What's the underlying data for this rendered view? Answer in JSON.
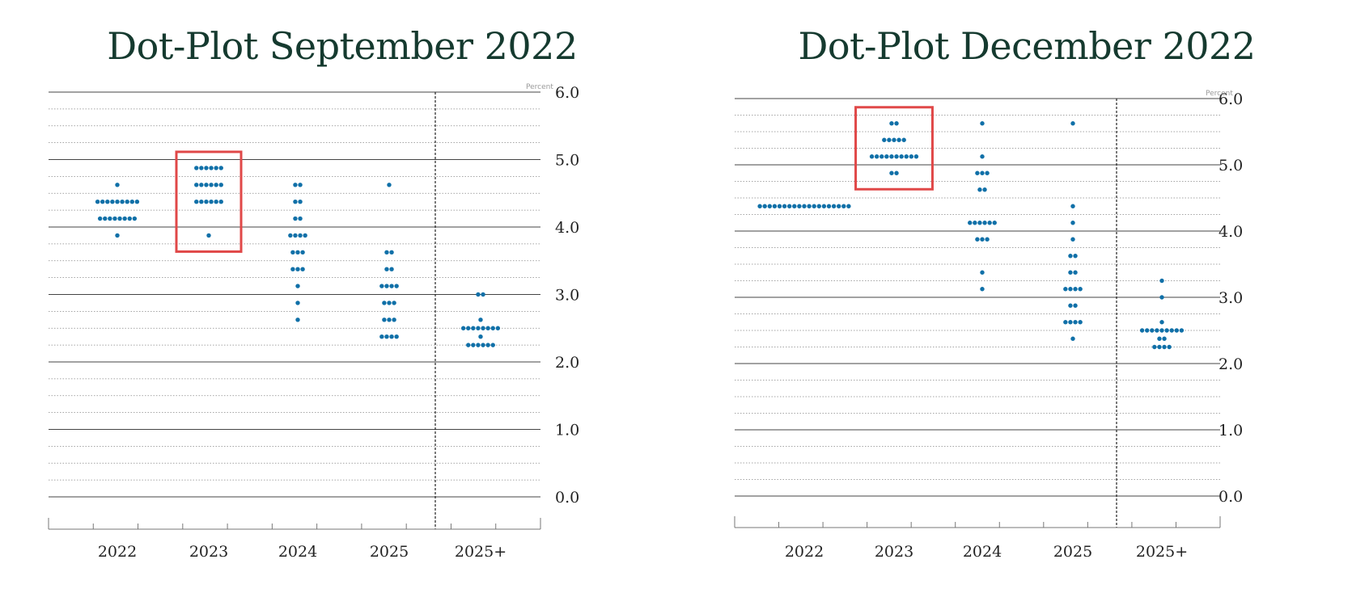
{
  "chart_data": [
    {
      "type": "scatter",
      "title": "Dot-Plot September 2022",
      "unit_label": "Percent",
      "categories": [
        "2022",
        "2023",
        "2024",
        "2025",
        "2025+"
      ],
      "yticks": [
        "0.0",
        "1.0",
        "2.0",
        "3.0",
        "4.0",
        "5.0",
        "6.0"
      ],
      "ylim": [
        0,
        6
      ],
      "grid": true,
      "highlight_category": "2023",
      "highlight_color": "#e04848",
      "dot_color": "#1070a8",
      "dots": [
        {
          "category": "2022",
          "levels": [
            {
              "y": 4.625,
              "count": 1
            },
            {
              "y": 4.375,
              "count": 9
            },
            {
              "y": 4.125,
              "count": 8
            },
            {
              "y": 3.875,
              "count": 1
            }
          ]
        },
        {
          "category": "2023",
          "levels": [
            {
              "y": 4.875,
              "count": 6
            },
            {
              "y": 4.625,
              "count": 6
            },
            {
              "y": 4.375,
              "count": 6
            },
            {
              "y": 3.875,
              "count": 1
            }
          ]
        },
        {
          "category": "2024",
          "levels": [
            {
              "y": 4.625,
              "count": 2
            },
            {
              "y": 4.375,
              "count": 2
            },
            {
              "y": 4.125,
              "count": 2
            },
            {
              "y": 3.875,
              "count": 4
            },
            {
              "y": 3.625,
              "count": 3
            },
            {
              "y": 3.375,
              "count": 3
            },
            {
              "y": 3.125,
              "count": 1
            },
            {
              "y": 2.875,
              "count": 1
            },
            {
              "y": 2.625,
              "count": 1
            }
          ]
        },
        {
          "category": "2025",
          "levels": [
            {
              "y": 4.625,
              "count": 1
            },
            {
              "y": 3.625,
              "count": 2
            },
            {
              "y": 3.375,
              "count": 2
            },
            {
              "y": 3.125,
              "count": 4
            },
            {
              "y": 2.875,
              "count": 3
            },
            {
              "y": 2.625,
              "count": 3
            },
            {
              "y": 2.375,
              "count": 4
            }
          ]
        },
        {
          "category": "2025+",
          "levels": [
            {
              "y": 3.0,
              "count": 2
            },
            {
              "y": 2.625,
              "count": 1
            },
            {
              "y": 2.5,
              "count": 8
            },
            {
              "y": 2.375,
              "count": 1
            },
            {
              "y": 2.25,
              "count": 6
            }
          ]
        }
      ]
    },
    {
      "type": "scatter",
      "title": "Dot-Plot December 2022",
      "unit_label": "Percent",
      "categories": [
        "2022",
        "2023",
        "2024",
        "2025",
        "2025+"
      ],
      "yticks": [
        "0.0",
        "1.0",
        "2.0",
        "3.0",
        "4.0",
        "5.0",
        "6.0"
      ],
      "ylim": [
        0,
        6
      ],
      "grid": true,
      "highlight_category": "2023",
      "highlight_color": "#e04848",
      "dot_color": "#1070a8",
      "dots": [
        {
          "category": "2022",
          "levels": [
            {
              "y": 4.375,
              "count": 19
            }
          ]
        },
        {
          "category": "2023",
          "levels": [
            {
              "y": 5.625,
              "count": 2
            },
            {
              "y": 5.375,
              "count": 5
            },
            {
              "y": 5.125,
              "count": 10
            },
            {
              "y": 4.875,
              "count": 2
            }
          ]
        },
        {
          "category": "2024",
          "levels": [
            {
              "y": 5.625,
              "count": 1
            },
            {
              "y": 5.125,
              "count": 1
            },
            {
              "y": 4.875,
              "count": 3
            },
            {
              "y": 4.625,
              "count": 2
            },
            {
              "y": 4.125,
              "count": 6
            },
            {
              "y": 3.875,
              "count": 3
            },
            {
              "y": 3.375,
              "count": 1
            },
            {
              "y": 3.125,
              "count": 1
            }
          ]
        },
        {
          "category": "2025",
          "levels": [
            {
              "y": 5.625,
              "count": 1
            },
            {
              "y": 4.375,
              "count": 1
            },
            {
              "y": 4.125,
              "count": 1
            },
            {
              "y": 3.875,
              "count": 1
            },
            {
              "y": 3.625,
              "count": 2
            },
            {
              "y": 3.375,
              "count": 2
            },
            {
              "y": 3.125,
              "count": 4
            },
            {
              "y": 2.875,
              "count": 2
            },
            {
              "y": 2.625,
              "count": 4
            },
            {
              "y": 2.375,
              "count": 1
            }
          ]
        },
        {
          "category": "2025+",
          "levels": [
            {
              "y": 3.25,
              "count": 1
            },
            {
              "y": 3.0,
              "count": 1
            },
            {
              "y": 2.625,
              "count": 1
            },
            {
              "y": 2.5,
              "count": 9
            },
            {
              "y": 2.375,
              "count": 2
            },
            {
              "y": 2.25,
              "count": 4
            }
          ]
        }
      ]
    }
  ]
}
